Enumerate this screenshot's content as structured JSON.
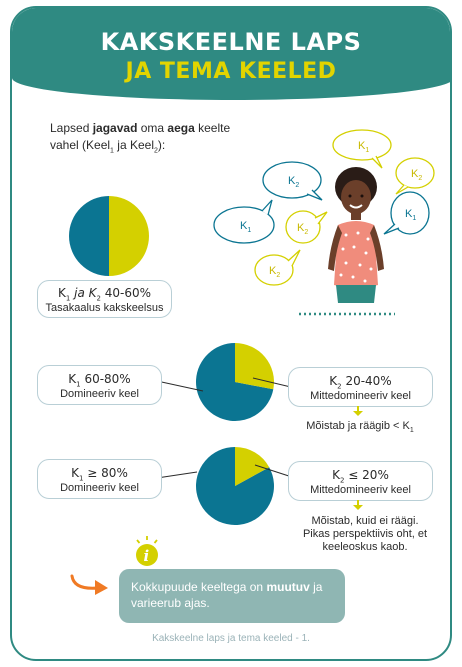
{
  "title": {
    "line1": "KAKSKEELNE LAPS",
    "line2": "JA TEMA KEELED"
  },
  "intro": {
    "pre": "Lapsed ",
    "b1": "jagavad",
    "mid1": " oma ",
    "b2": "aega",
    "mid2": " keelte vahel (Keel",
    "s1": "1",
    "mid3": " ja Keel",
    "s2": "2",
    "post": "):"
  },
  "balanced": {
    "title_k1": "K",
    "title_s1": "1",
    "title_ja": " ja K",
    "title_s2": "2",
    "title_val": " 40-60%",
    "desc": "Tasakaalus kakskeelsus",
    "k1_share": 0.5
  },
  "dominant1": {
    "left_title_k": "K",
    "left_title_s": "1",
    "left_title_val": " 60-80%",
    "left_desc": "Domineeriv keel",
    "right_title_k": "K",
    "right_title_s": "2",
    "right_title_val": " 20-40%",
    "right_desc": "Mittedomineeriv keel",
    "note": "Mõistab ja räägib < K",
    "note_sub": "1",
    "k2_share": 0.28
  },
  "dominant2": {
    "left_title_k": "K",
    "left_title_s": "1",
    "left_title_val": " ≥ 80%",
    "left_desc": "Domineeriv keel",
    "right_title_k": "K",
    "right_title_s": "2",
    "right_title_val": " ≤ 20%",
    "right_desc": "Mittedomineeriv keel",
    "note_l1": "Mõistab, kuid ei räägi.",
    "note_l2": "Pikas perspektiivis oht, et",
    "note_l3": "keeleoskus kaob.",
    "k2_share": 0.17
  },
  "bubbles": [
    {
      "label": "K",
      "sub": "1",
      "style": "blue"
    },
    {
      "label": "K",
      "sub": "2",
      "style": "yellow"
    },
    {
      "label": "K",
      "sub": "2",
      "style": "yellow"
    },
    {
      "label": "K",
      "sub": "1",
      "style": "blue"
    },
    {
      "label": "K",
      "sub": "2",
      "style": "yellow"
    },
    {
      "label": "K",
      "sub": "1",
      "style": "blue"
    },
    {
      "label": "K",
      "sub": "2",
      "style": "yellow"
    }
  ],
  "info_icon": "info-icon",
  "callout": {
    "pre": "Kokkupuude keeltega on ",
    "b": "muutuv",
    "post": " ja varieerub ajas."
  },
  "footer": "Kakskeelne laps ja tema keeled - 1.",
  "colors": {
    "teal": "#2f8a82",
    "blue": "#0b7592",
    "yellow": "#d4d000",
    "title_yellow": "#e2d400",
    "orange": "#f07a24",
    "callout": "#8fb6b3"
  }
}
